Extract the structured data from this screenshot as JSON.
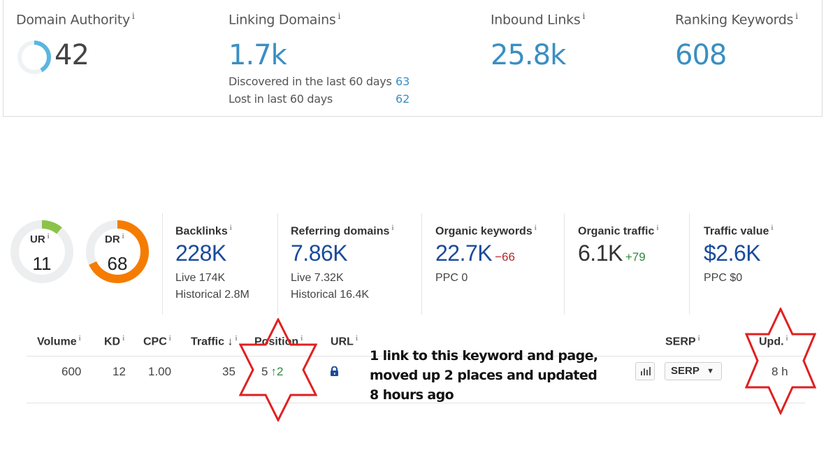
{
  "summary": {
    "domain_authority": {
      "label": "Domain Authority",
      "info": "i",
      "value": "42",
      "ring_fraction": 0.42
    },
    "linking_domains": {
      "label": "Linking Domains",
      "info": "i",
      "value": "1.7k",
      "discovered_label": "Discovered in the last 60 days",
      "discovered_value": "63",
      "lost_label": "Lost in last 60 days",
      "lost_value": "62"
    },
    "inbound_links": {
      "label": "Inbound Links",
      "info": "i",
      "value": "25.8k"
    },
    "ranking_keywords": {
      "label": "Ranking Keywords",
      "info": "i",
      "value": "608"
    }
  },
  "metrics": {
    "ur": {
      "label": "UR",
      "info": "i",
      "value": "11",
      "ring_fraction": 0.11,
      "color": "#8bc34a"
    },
    "dr": {
      "label": "DR",
      "info": "i",
      "value": "68",
      "ring_fraction": 0.68,
      "color": "#f57c00"
    },
    "backlinks": {
      "label": "Backlinks",
      "info": "i",
      "value": "228K",
      "sub1": "Live 174K",
      "sub2": "Historical 2.8M"
    },
    "referring_domains": {
      "label": "Referring domains",
      "info": "i",
      "value": "7.86K",
      "sub1": "Live 7.32K",
      "sub2": "Historical 16.4K"
    },
    "organic_keywords": {
      "label": "Organic keywords",
      "info": "i",
      "value": "22.7K",
      "delta": "−66",
      "sub1": "PPC 0"
    },
    "organic_traffic": {
      "label": "Organic traffic",
      "info": "i",
      "value": "6.1K",
      "delta": "+79"
    },
    "traffic_value": {
      "label": "Traffic value",
      "info": "i",
      "value": "$2.6K",
      "sub1": "PPC $0"
    }
  },
  "keyword_table": {
    "headers": {
      "volume": "Volume",
      "kd": "KD",
      "cpc": "CPC",
      "traffic": "Traffic",
      "traffic_sort": "↓",
      "position": "Position",
      "url": "URL",
      "serp": "SERP",
      "updated": "Upd.",
      "info": "i"
    },
    "row": {
      "volume": "600",
      "kd": "12",
      "cpc": "1.00",
      "traffic": "35",
      "position": "5",
      "position_change": "↑2",
      "serp_button": "SERP",
      "serp_caret": "▼",
      "updated": "8 h"
    }
  },
  "annotation": {
    "text": "1 link to this keyword and page, moved up 2 places and updated 8 hours ago",
    "star_color": "#e02020"
  },
  "colors": {
    "accent_blue": "#3a8fc2",
    "metric_blue": "#1a4b9b",
    "positive": "#2e8b3a",
    "negative": "#b02a2a"
  }
}
